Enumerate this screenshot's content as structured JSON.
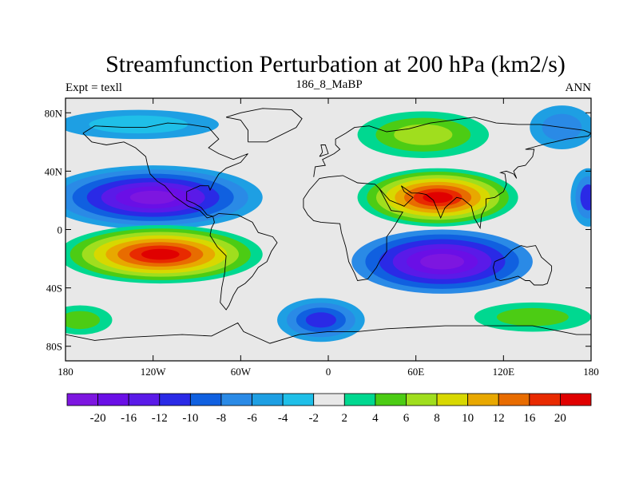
{
  "title": "Streamfunction Perturbation at 200 hPa (km2/s)",
  "subtitle_left": "Expt = texll",
  "subtitle_center": "186_8_MaBP",
  "subtitle_right": "ANN",
  "y_ticks": [
    {
      "label": "80N",
      "lat": 80
    },
    {
      "label": "40N",
      "lat": 40
    },
    {
      "label": "0",
      "lat": 0
    },
    {
      "label": "40S",
      "lat": -40
    },
    {
      "label": "80S",
      "lat": -80
    }
  ],
  "x_ticks": [
    {
      "label": "180",
      "lon": -180
    },
    {
      "label": "120W",
      "lon": -120
    },
    {
      "label": "60W",
      "lon": -60
    },
    {
      "label": "0",
      "lon": 0
    },
    {
      "label": "60E",
      "lon": 60
    },
    {
      "label": "120E",
      "lon": 120
    },
    {
      "label": "180",
      "lon": 180
    }
  ],
  "colorbar": {
    "colors": [
      "#7d16e0",
      "#6a0fe6",
      "#5a1ae8",
      "#2a2ae6",
      "#1060e0",
      "#2a8ae6",
      "#1e9fe3",
      "#1fbfe8",
      "#e8e8e8",
      "#00d890",
      "#4ccc14",
      "#a0de1e",
      "#d8d800",
      "#e8a800",
      "#e86c00",
      "#e82a00",
      "#e00000"
    ],
    "labels": [
      "-20",
      "-16",
      "-12",
      "-10",
      "-8",
      "-6",
      "-4",
      "-2",
      "2",
      "4",
      "6",
      "8",
      "10",
      "12",
      "16",
      "20"
    ]
  },
  "colors": {
    "neutral": "#e8e8e8",
    "coastline": "#000000"
  }
}
